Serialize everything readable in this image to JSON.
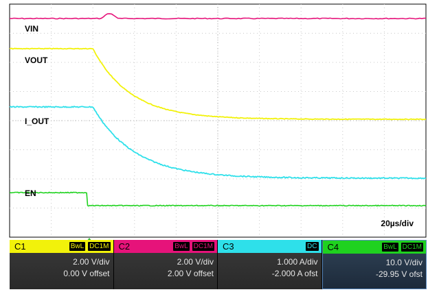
{
  "timebase": "20µs/div",
  "colors": {
    "vin": "#e6137a",
    "vout": "#f2f20a",
    "i_out": "#2ee0ea",
    "en": "#1fd21f",
    "grid": "#c8c8c8",
    "trigger": "#2fbf3a"
  },
  "traces": [
    {
      "label": "VIN"
    },
    {
      "label": "VOUT"
    },
    {
      "label": "I_OUT"
    },
    {
      "label": "EN"
    }
  ],
  "channels": [
    {
      "name": "C1",
      "tags": [
        "BwL",
        "DC1M"
      ],
      "scale": "2.00 V/div",
      "offset": "0.00 V offset",
      "color": "#f2f20a"
    },
    {
      "name": "C2",
      "tags": [
        "BwL",
        "DC1M"
      ],
      "scale": "2.00 V/div",
      "offset": "2.00 V offset",
      "color": "#e6137a"
    },
    {
      "name": "C3",
      "tags": [
        "DC"
      ],
      "scale": "1.000 A/div",
      "offset": "-2.000 A ofst",
      "color": "#2ee0ea"
    },
    {
      "name": "C4",
      "tags": [
        "BwL",
        "DC1M"
      ],
      "scale": "10.0 V/div",
      "offset": "-29.95 V ofst",
      "color": "#1fd21f"
    }
  ],
  "chart_data": {
    "type": "line",
    "title": "",
    "xlabel": "20µs/div",
    "x": [
      0,
      20,
      40,
      60,
      80,
      100,
      120,
      140,
      160,
      180,
      200
    ],
    "series": [
      {
        "name": "VIN",
        "values": [
          4,
          4,
          4,
          4,
          4,
          4,
          4,
          4,
          4,
          4,
          4
        ]
      },
      {
        "name": "VOUT",
        "values": [
          3.5,
          3.5,
          3.5,
          2.1,
          1.2,
          0.65,
          0.32,
          0.17,
          0.09,
          0.05,
          0.03
        ]
      },
      {
        "name": "I_OUT",
        "values": [
          1.9,
          1.9,
          1.9,
          1.05,
          0.57,
          0.3,
          0.16,
          0.09,
          0.05,
          0.03,
          0.02
        ]
      },
      {
        "name": "EN",
        "values": [
          3.5,
          3.5,
          3.0,
          0.3,
          0.3,
          0.3,
          0.3,
          0.3,
          0.3,
          0.3,
          0.3
        ]
      }
    ],
    "legend": "none",
    "grid": true
  }
}
